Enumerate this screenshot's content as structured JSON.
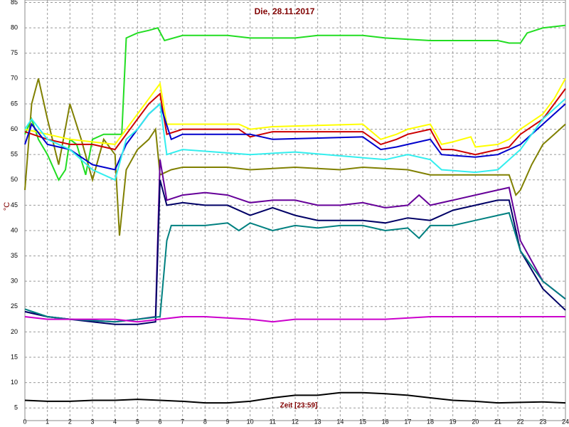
{
  "chart_data": {
    "type": "line",
    "title": "Die, 28.11.2017",
    "y_label": "°C",
    "x_label": "Zeit [23:59]",
    "xlim": [
      0,
      24
    ],
    "xticks": [
      0,
      1,
      2,
      3,
      4,
      5,
      6,
      7,
      8,
      9,
      10,
      11,
      12,
      13,
      14,
      15,
      16,
      17,
      18,
      19,
      20,
      21,
      22,
      23,
      24
    ],
    "ylim": [
      2.5,
      85.5
    ],
    "yticks": [
      5,
      10,
      15,
      20,
      25,
      30,
      35,
      40,
      45,
      50,
      55,
      60,
      65,
      70,
      75,
      80,
      85
    ],
    "grid": true,
    "series": [
      {
        "color": "#22dd22",
        "x": [
          0,
          0.3,
          0.6,
          1,
          1.5,
          1.8,
          2,
          2.3,
          2.7,
          3,
          3.5,
          4,
          4.3,
          4.5,
          5,
          5.5,
          5.9,
          6.2,
          7,
          9,
          10,
          12,
          13,
          15,
          16,
          18,
          21,
          21.5,
          22,
          22.3,
          23,
          24
        ],
        "values": [
          59,
          62,
          58,
          55,
          50,
          52,
          58,
          57,
          51,
          58,
          59,
          59,
          59,
          78,
          79,
          79.5,
          80,
          77.5,
          78.5,
          78.5,
          78,
          78,
          78.5,
          78.5,
          78,
          77.5,
          77.5,
          77,
          77,
          79,
          80,
          80.5
        ]
      },
      {
        "color": "#808000",
        "x": [
          0,
          0.3,
          0.6,
          1,
          1.5,
          2,
          2.5,
          3,
          3.5,
          4,
          4.2,
          4.5,
          5,
          5.5,
          5.8,
          6,
          6.5,
          7,
          9,
          10,
          12,
          14,
          15,
          17,
          18,
          19,
          21,
          21.5,
          21.8,
          22,
          22.5,
          23,
          23.5,
          24
        ],
        "values": [
          48,
          65,
          70,
          62,
          53,
          65,
          58,
          50,
          58,
          55,
          39,
          52,
          56,
          58,
          60,
          51,
          52,
          52.5,
          52.5,
          52,
          52.5,
          52,
          52.5,
          52,
          51,
          51,
          51,
          51,
          47,
          48,
          53,
          57,
          59,
          61
        ]
      },
      {
        "color": "#cc0000",
        "x": [
          0,
          1,
          2,
          2.3,
          3,
          4,
          4.5,
          5,
          5.5,
          6,
          6.3,
          7,
          9.5,
          10,
          11,
          15,
          15.8,
          16.5,
          17,
          18,
          18.5,
          19,
          20,
          21,
          21.5,
          22,
          23,
          23.5,
          24
        ],
        "values": [
          59.5,
          58,
          57,
          57,
          57,
          56,
          59,
          62,
          65,
          67,
          59,
          60,
          60,
          58.5,
          59.5,
          59.5,
          57,
          58,
          59,
          60,
          56,
          56,
          55,
          56,
          56.5,
          59,
          62,
          65,
          68
        ]
      },
      {
        "color": "#ffff00",
        "x": [
          0,
          1,
          2,
          3,
          4,
          4.5,
          5,
          5.5,
          6,
          6.3,
          7,
          9.5,
          10,
          11,
          15,
          15.8,
          16.5,
          17,
          18,
          18.5,
          19,
          19.8,
          20,
          21,
          21.5,
          22,
          23,
          23.5,
          24
        ],
        "values": [
          60,
          59,
          58,
          57.5,
          57,
          60,
          63,
          66,
          69,
          61,
          61,
          61,
          60,
          60.5,
          61,
          58,
          59,
          60,
          61,
          57,
          57.5,
          58.5,
          56.5,
          57,
          58,
          60,
          63,
          66,
          70
        ]
      },
      {
        "color": "#0000cc",
        "x": [
          0,
          0.3,
          1,
          2,
          3,
          4,
          4.5,
          5,
          5.5,
          6,
          6.5,
          7,
          10,
          11,
          15,
          15.8,
          16.5,
          17,
          18,
          18.5,
          20,
          21,
          22,
          23,
          24
        ],
        "values": [
          57,
          61,
          57,
          56,
          53,
          52,
          57,
          60,
          63,
          65,
          58,
          59,
          59,
          58,
          58.5,
          56,
          56.5,
          57,
          58,
          55,
          54.5,
          55,
          57,
          61,
          65
        ]
      },
      {
        "color": "#33eeee",
        "x": [
          0,
          0.3,
          1,
          2,
          3,
          4,
          4.5,
          5,
          5.5,
          6,
          6.3,
          7,
          10,
          12,
          16,
          17,
          18,
          18.5,
          20,
          21,
          22,
          23,
          24
        ],
        "values": [
          60,
          62,
          58,
          56,
          52,
          50,
          58,
          60,
          63,
          65,
          55,
          56,
          55,
          55.5,
          54,
          55,
          54,
          52,
          51.5,
          52,
          56,
          62,
          66
        ]
      },
      {
        "color": "#660099",
        "x": [
          0,
          1,
          2,
          4,
          5,
          5.8,
          6,
          6.3,
          7,
          8,
          9,
          10,
          11,
          12,
          13,
          14,
          15,
          16,
          17,
          17.5,
          18,
          19,
          20,
          21,
          21.5,
          22,
          23,
          24
        ],
        "values": [
          24,
          23,
          22.5,
          22,
          22.5,
          23,
          54,
          46,
          47,
          47.5,
          47,
          45.5,
          46,
          46,
          45,
          45,
          45.5,
          44.5,
          45,
          47,
          45,
          46,
          47,
          48,
          48.5,
          38,
          30,
          26.5
        ]
      },
      {
        "color": "#000066",
        "x": [
          0,
          1,
          2,
          3,
          4,
          5,
          5.8,
          6,
          6.3,
          7,
          8,
          9,
          10,
          11,
          12,
          13,
          14,
          15,
          16,
          17,
          18,
          19,
          20,
          21,
          21.5,
          22,
          23,
          24
        ],
        "values": [
          24,
          23,
          22.5,
          22,
          21.5,
          21.5,
          22,
          50,
          45,
          45.5,
          45,
          45,
          43,
          44.5,
          43,
          42,
          42,
          42,
          41.5,
          42.5,
          42,
          44,
          45,
          46,
          46,
          36,
          28.5,
          24.3
        ]
      },
      {
        "color": "#008080",
        "x": [
          0,
          1,
          2,
          4,
          5,
          6,
          6.3,
          6.5,
          7,
          8,
          9,
          9.5,
          10,
          11,
          12,
          13,
          14,
          15,
          16,
          17,
          17.5,
          18,
          19,
          20,
          21,
          21.5,
          22,
          23,
          24
        ],
        "values": [
          24.5,
          23,
          22.5,
          22,
          22.5,
          23,
          38,
          41,
          41,
          41,
          41.5,
          40,
          41.5,
          40,
          41,
          40.5,
          41,
          41,
          40,
          40.5,
          38.5,
          41,
          41,
          42,
          43,
          43.5,
          36,
          30,
          26.5
        ]
      },
      {
        "color": "#cc00cc",
        "x": [
          0,
          1,
          4,
          5,
          6,
          7,
          8,
          10,
          11,
          12,
          14,
          16,
          18,
          20,
          22,
          24
        ],
        "values": [
          23,
          22.5,
          22.5,
          22,
          22.5,
          23,
          23,
          22.5,
          22,
          22.5,
          22.5,
          22.5,
          23,
          23,
          23,
          23
        ]
      },
      {
        "color": "#000000",
        "x": [
          0,
          1,
          2,
          3,
          4,
          5,
          6,
          7,
          8,
          9,
          10,
          11,
          12,
          13,
          14,
          15,
          16,
          17,
          18,
          19,
          20,
          21,
          22,
          23,
          24
        ],
        "values": [
          6.5,
          6.3,
          6.3,
          6.5,
          6.5,
          6.7,
          6.5,
          6.3,
          6,
          6,
          6.3,
          7,
          7.5,
          7.5,
          8,
          8,
          7.8,
          7.5,
          7,
          6.5,
          6.3,
          6,
          6.1,
          6.2,
          6
        ]
      }
    ]
  }
}
